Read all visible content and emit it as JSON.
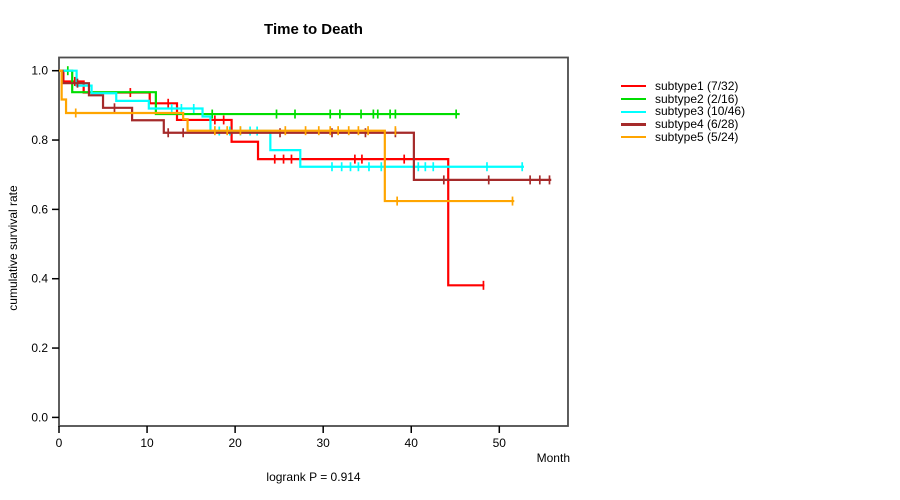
{
  "title": "Time to Death",
  "y_axis_title": "cumulative survival rate",
  "x_axis_title": "Month",
  "footer": "logrank P = 0.914",
  "axis_color": "#4d4d4d",
  "tick_color": "#000000",
  "chart_data": {
    "type": "line",
    "subtype": "kaplan-meier-step",
    "title": "Time to Death",
    "xlabel": "Month",
    "ylabel": "cumulative survival rate",
    "annotation": "logrank P = 0.914",
    "xlim": [
      0,
      57.8
    ],
    "ylim": [
      0.0,
      1.0
    ],
    "x_ticks": [
      0,
      10,
      20,
      30,
      40,
      50
    ],
    "y_ticks": [
      0.0,
      0.2,
      0.4,
      0.6,
      0.8,
      1.0
    ],
    "grid": false,
    "legend_position": "right",
    "series": [
      {
        "name": "subtype1",
        "legend_label": "subtype1 (7/32)",
        "color": "#ff0000",
        "steps": [
          [
            0,
            1.0
          ],
          [
            0.5,
            0.969
          ],
          [
            2.8,
            0.937
          ],
          [
            10.3,
            0.906
          ],
          [
            13.4,
            0.858
          ],
          [
            19.6,
            0.795
          ],
          [
            22.6,
            0.745
          ],
          [
            44.2,
            0.381
          ]
        ],
        "end_month": 48.3,
        "censors": [
          [
            1.8,
            0.969
          ],
          [
            8.1,
            0.937
          ],
          [
            12.4,
            0.906
          ],
          [
            17.7,
            0.858
          ],
          [
            18.7,
            0.858
          ],
          [
            24.5,
            0.745
          ],
          [
            25.5,
            0.745
          ],
          [
            26.4,
            0.745
          ],
          [
            33.6,
            0.745
          ],
          [
            34.4,
            0.745
          ],
          [
            39.2,
            0.745
          ],
          [
            48.2,
            0.381
          ]
        ]
      },
      {
        "name": "subtype2",
        "legend_label": "subtype2 (2/16)",
        "color": "#00dd00",
        "steps": [
          [
            0,
            1.0
          ],
          [
            1.5,
            0.938
          ],
          [
            11.0,
            0.875
          ]
        ],
        "end_month": 45.5,
        "censors": [
          [
            1.0,
            1.0
          ],
          [
            17.4,
            0.875
          ],
          [
            24.7,
            0.875
          ],
          [
            26.8,
            0.875
          ],
          [
            30.8,
            0.875
          ],
          [
            31.9,
            0.875
          ],
          [
            34.3,
            0.875
          ],
          [
            35.7,
            0.875
          ],
          [
            36.2,
            0.875
          ],
          [
            37.6,
            0.875
          ],
          [
            38.2,
            0.875
          ],
          [
            45.1,
            0.875
          ]
        ]
      },
      {
        "name": "subtype3",
        "legend_label": "subtype3 (10/46)",
        "color": "#00ffff",
        "steps": [
          [
            0,
            1.0
          ],
          [
            2.0,
            0.957
          ],
          [
            3.7,
            0.935
          ],
          [
            6.5,
            0.913
          ],
          [
            10.2,
            0.891
          ],
          [
            16.3,
            0.868
          ],
          [
            17.2,
            0.826
          ],
          [
            24.0,
            0.771
          ],
          [
            27.4,
            0.723
          ]
        ],
        "end_month": 52.8,
        "censors": [
          [
            12.8,
            0.891
          ],
          [
            13.9,
            0.891
          ],
          [
            15.3,
            0.891
          ],
          [
            18.2,
            0.826
          ],
          [
            19.4,
            0.826
          ],
          [
            20.6,
            0.826
          ],
          [
            21.7,
            0.826
          ],
          [
            22.5,
            0.826
          ],
          [
            31.0,
            0.723
          ],
          [
            32.1,
            0.723
          ],
          [
            33.1,
            0.723
          ],
          [
            34.0,
            0.723
          ],
          [
            35.2,
            0.723
          ],
          [
            36.6,
            0.723
          ],
          [
            40.8,
            0.723
          ],
          [
            41.6,
            0.723
          ],
          [
            42.5,
            0.723
          ],
          [
            48.6,
            0.723
          ],
          [
            52.6,
            0.723
          ]
        ]
      },
      {
        "name": "subtype4",
        "legend_label": "subtype4 (6/28)",
        "color": "#a52a2a",
        "steps": [
          [
            0,
            1.0
          ],
          [
            0.4,
            0.964
          ],
          [
            3.4,
            0.929
          ],
          [
            5.0,
            0.893
          ],
          [
            8.3,
            0.857
          ],
          [
            11.9,
            0.821
          ],
          [
            40.3,
            0.685
          ]
        ],
        "end_month": 55.9,
        "censors": [
          [
            2.1,
            0.964
          ],
          [
            6.3,
            0.893
          ],
          [
            12.4,
            0.821
          ],
          [
            14.1,
            0.821
          ],
          [
            25.1,
            0.821
          ],
          [
            31.0,
            0.821
          ],
          [
            34.8,
            0.821
          ],
          [
            38.2,
            0.821
          ],
          [
            43.7,
            0.685
          ],
          [
            48.8,
            0.685
          ],
          [
            53.5,
            0.685
          ],
          [
            54.6,
            0.685
          ],
          [
            55.7,
            0.685
          ]
        ]
      },
      {
        "name": "subtype5",
        "legend_label": "subtype5 (5/24)",
        "color": "#ffa500",
        "steps": [
          [
            0,
            1.0
          ],
          [
            0.3,
            0.917
          ],
          [
            0.8,
            0.878
          ],
          [
            14.1,
            0.86
          ],
          [
            14.6,
            0.827
          ],
          [
            37.0,
            0.624
          ]
        ],
        "end_month": 51.7,
        "censors": [
          [
            1.9,
            0.878
          ],
          [
            17.7,
            0.827
          ],
          [
            19.1,
            0.827
          ],
          [
            20.6,
            0.827
          ],
          [
            25.7,
            0.827
          ],
          [
            28.0,
            0.827
          ],
          [
            29.5,
            0.827
          ],
          [
            30.8,
            0.827
          ],
          [
            31.7,
            0.827
          ],
          [
            32.9,
            0.827
          ],
          [
            34.0,
            0.827
          ],
          [
            35.1,
            0.827
          ],
          [
            38.2,
            0.827
          ],
          [
            38.4,
            0.624
          ],
          [
            51.5,
            0.624
          ]
        ]
      }
    ]
  }
}
